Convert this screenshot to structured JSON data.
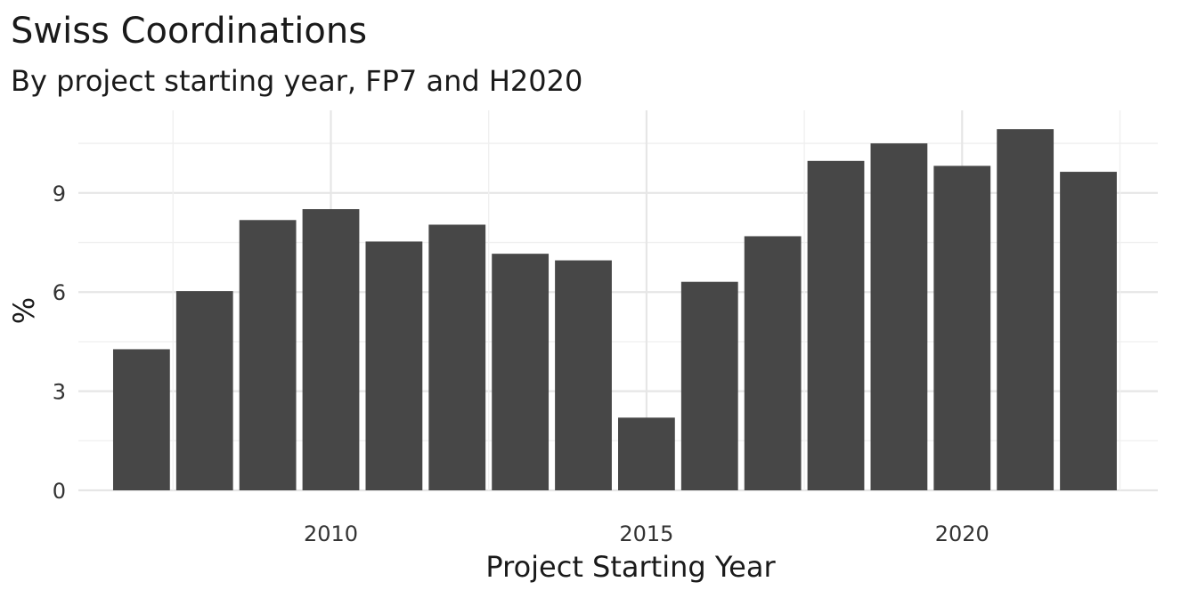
{
  "chart_data": {
    "type": "bar",
    "title": "Swiss Coordinations",
    "subtitle": "By project starting year, FP7 and H2020",
    "xlabel": "Project Starting Year",
    "ylabel": "%",
    "x": [
      2007,
      2008,
      2009,
      2010,
      2011,
      2012,
      2013,
      2014,
      2015,
      2016,
      2017,
      2018,
      2019,
      2020,
      2021,
      2022
    ],
    "values": [
      4.27,
      6.03,
      8.18,
      8.51,
      7.53,
      8.04,
      7.16,
      6.96,
      2.2,
      6.31,
      7.69,
      9.97,
      10.5,
      9.82,
      10.93,
      9.64
    ],
    "x_ticks": [
      "2010",
      "2015",
      "2020"
    ],
    "y_ticks": [
      "0",
      "3",
      "6",
      "9"
    ],
    "xlim": [
      2006.0,
      2023.1
    ],
    "ylim": [
      0,
      11.5
    ],
    "bar_color": "#474747",
    "grid": true,
    "legend": "none"
  }
}
